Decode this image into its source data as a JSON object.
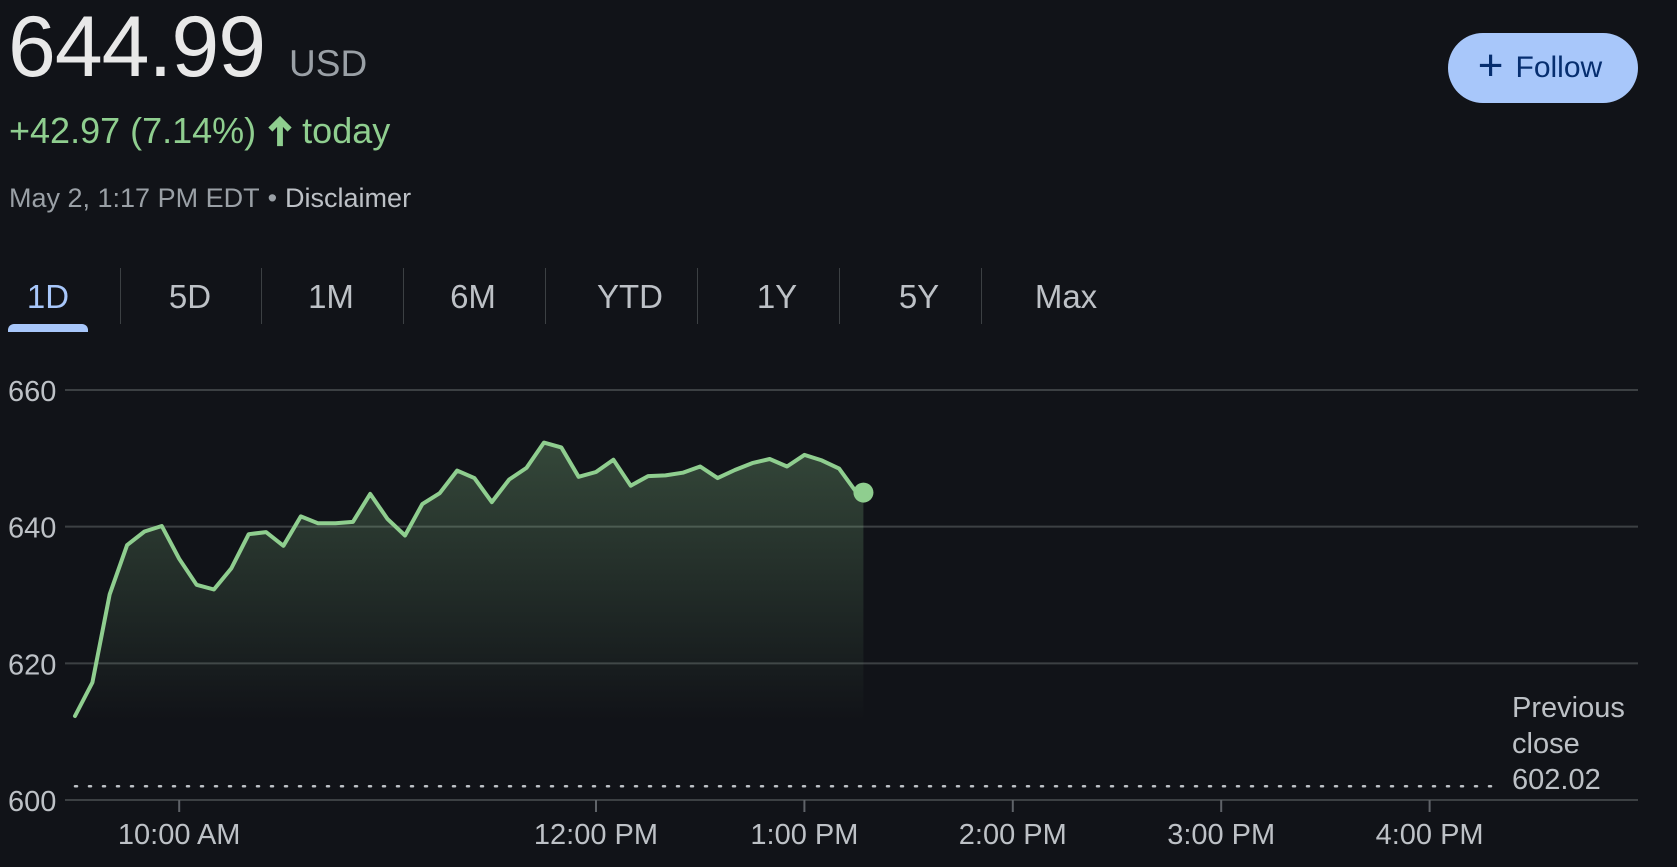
{
  "quote": {
    "price": "644.99",
    "currency": "USD",
    "change": "+42.97 (7.14%)",
    "change_suffix": "today",
    "timestamp": "May 2, 1:17 PM EDT",
    "disclaimer": "Disclaimer"
  },
  "follow_button": {
    "label": "Follow"
  },
  "tabs": [
    {
      "label": "1D",
      "active": true
    },
    {
      "label": "5D"
    },
    {
      "label": "1M"
    },
    {
      "label": "6M"
    },
    {
      "label": "YTD"
    },
    {
      "label": "1Y"
    },
    {
      "label": "5Y"
    },
    {
      "label": "Max"
    }
  ],
  "colors": {
    "line": "#8fce8f",
    "accent": "#a8c7fa",
    "background": "#111318",
    "grid": "#3c4043"
  },
  "chart_data": {
    "type": "line",
    "ylim": [
      600,
      660
    ],
    "yticks": [
      600,
      620,
      640,
      660
    ],
    "xlim_minutes": [
      570,
      1020
    ],
    "xticks": [
      {
        "minutes": 600,
        "label": "10:00 AM"
      },
      {
        "minutes": 720,
        "label": "12:00 PM"
      },
      {
        "minutes": 780,
        "label": "1:00 PM"
      },
      {
        "minutes": 840,
        "label": "2:00 PM"
      },
      {
        "minutes": 900,
        "label": "3:00 PM"
      },
      {
        "minutes": 960,
        "label": "4:00 PM"
      }
    ],
    "previous_close": 602.02,
    "previous_close_label": [
      "Previous",
      "close",
      "602.02"
    ],
    "series": [
      {
        "x": [
          570,
          575,
          580,
          585,
          590,
          595,
          600,
          605,
          610,
          615,
          620,
          625,
          630,
          635,
          640,
          645,
          650,
          655,
          660,
          665,
          670,
          675,
          680,
          685,
          690,
          695,
          700,
          705,
          710,
          715,
          720,
          725,
          730,
          735,
          740,
          745,
          750,
          755,
          760,
          765,
          770,
          775,
          780,
          785,
          790,
          795,
          797
        ],
        "y": [
          612.3,
          617.2,
          630.1,
          637.3,
          639.3,
          640.1,
          635.3,
          631.5,
          630.8,
          633.9,
          638.9,
          639.2,
          637.2,
          641.5,
          640.5,
          640.5,
          640.7,
          644.8,
          641.1,
          638.7,
          643.3,
          644.9,
          648.2,
          647.1,
          643.6,
          646.9,
          648.6,
          652.3,
          651.6,
          647.3,
          648.0,
          649.8,
          646.0,
          647.4,
          647.5,
          647.9,
          648.8,
          647.1,
          648.3,
          649.3,
          649.9,
          648.8,
          650.5,
          649.7,
          648.5,
          645.0,
          644.99
        ]
      }
    ]
  }
}
